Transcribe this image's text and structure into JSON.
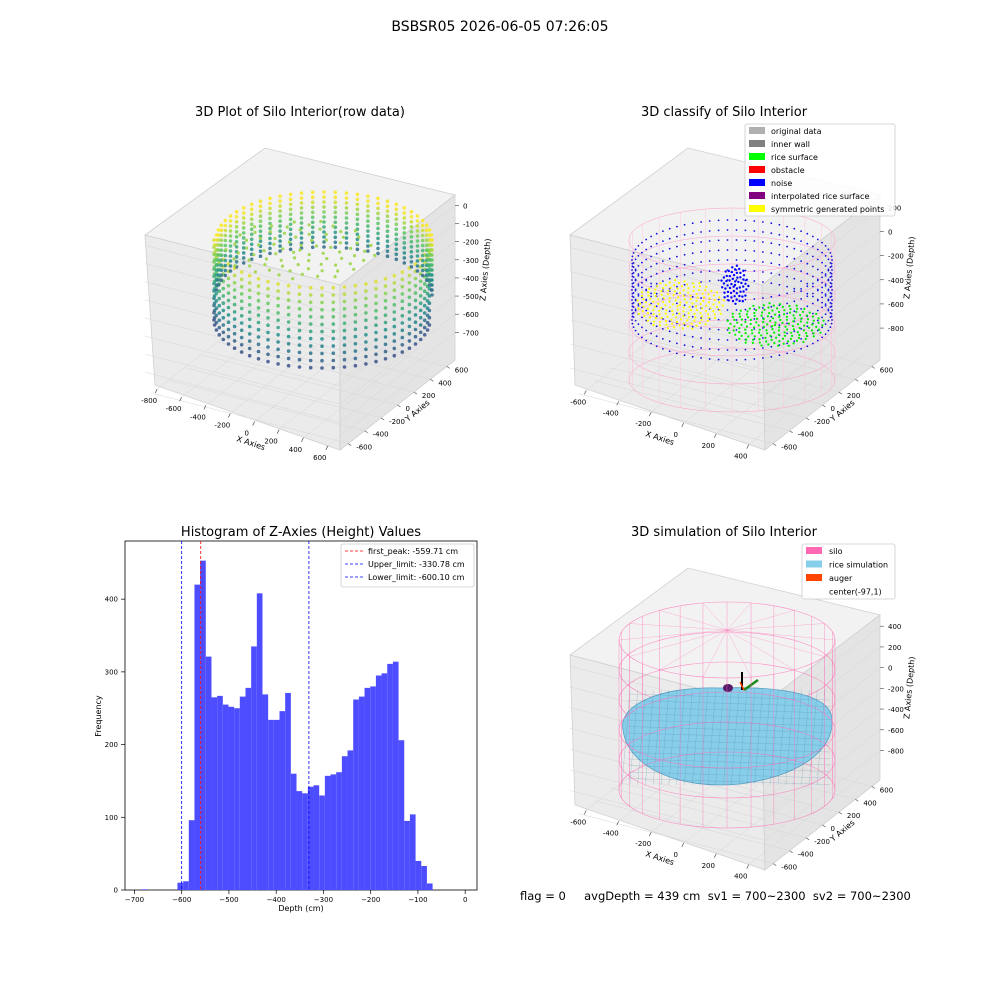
{
  "figure": {
    "suptitle": "BSBSR05 2026-06-05 07:26:05",
    "status_line": "flag = 0     avgDepth = 439 cm  sv1 = 700~2300  sv2 = 700~2300"
  },
  "chart_data": [
    {
      "type": "scatter",
      "projection": "3d",
      "title": "3D Plot of Silo Interior(row data)",
      "xlabel": "X Axies",
      "ylabel": "Y Axies",
      "zlabel": "Z Axies (Depth)",
      "xticks": [
        "-800",
        "-600",
        "-400",
        "-200",
        "0",
        "200",
        "400",
        "600"
      ],
      "yticks": [
        "-600",
        "-400",
        "-200",
        "0",
        "200",
        "400",
        "600"
      ],
      "zticks": [
        "0",
        "-100",
        "-200",
        "-300",
        "-400",
        "-500",
        "-600",
        "-700"
      ],
      "xlim": [
        -900,
        650
      ],
      "ylim": [
        -650,
        650
      ],
      "zlim": [
        -720,
        20
      ],
      "colormap": "viridis",
      "grid": true
    },
    {
      "type": "scatter",
      "projection": "3d",
      "title": "3D classify of Silo Interior",
      "xlabel": "X Axies",
      "ylabel": "Y Axies",
      "zlabel": "Z Axies (Depth)",
      "xticks": [
        "-600",
        "-400",
        "-200",
        "0",
        "200",
        "400"
      ],
      "yticks": [
        "-600",
        "-400",
        "-200",
        "0",
        "200",
        "400",
        "600"
      ],
      "zticks": [
        "200",
        "0",
        "-200",
        "-400",
        "-600",
        "-800"
      ],
      "xlim": [
        -700,
        500
      ],
      "ylim": [
        -650,
        650
      ],
      "zlim": [
        -900,
        300
      ],
      "legend": {
        "position": "top-right",
        "entries": [
          {
            "label": "original data",
            "color": "#b0b0b0"
          },
          {
            "label": "inner wall",
            "color": "#808080"
          },
          {
            "label": "rice surface",
            "color": "#00ff00"
          },
          {
            "label": "obstacle",
            "color": "#ff0000"
          },
          {
            "label": "noise",
            "color": "#0000ff"
          },
          {
            "label": "interpolated rice surface",
            "color": "#800080"
          },
          {
            "label": "symmetric generated points",
            "color": "#ffff00"
          }
        ]
      },
      "grid": true
    },
    {
      "type": "bar",
      "title": "Histogram of Z-Axies (Height) Values",
      "xlabel": "Depth (cm)",
      "ylabel": "Frequency",
      "xlim": [
        -720,
        25
      ],
      "ylim": [
        0,
        480
      ],
      "xticks": [
        -700,
        -600,
        -500,
        -400,
        -300,
        -200,
        -100,
        0
      ],
      "yticks": [
        0,
        100,
        200,
        300,
        400
      ],
      "bar_color": "#4d4dff",
      "bins_left_edge": [
        -685,
        -609,
        -597,
        -585,
        -573,
        -561,
        -549,
        -537,
        -525,
        -513,
        -501,
        -489,
        -477,
        -465,
        -453,
        -441,
        -429,
        -417,
        -405,
        -393,
        -381,
        -369,
        -357,
        -345,
        -333,
        -321,
        -309,
        -297,
        -285,
        -273,
        -261,
        -249,
        -237,
        -225,
        -213,
        -201,
        -189,
        -177,
        -165,
        -153,
        -141,
        -129,
        -117,
        -105,
        -93,
        -81,
        -69,
        -57,
        -45,
        -33,
        -21
      ],
      "bin_width": 12,
      "values": [
        1,
        10,
        12,
        96,
        420,
        453,
        321,
        265,
        267,
        255,
        252,
        250,
        266,
        278,
        335,
        408,
        269,
        234,
        234,
        246,
        271,
        160,
        136,
        133,
        142,
        144,
        130,
        157,
        159,
        162,
        184,
        192,
        262,
        266,
        278,
        280,
        295,
        298,
        311,
        314,
        206,
        95,
        104,
        40,
        33,
        9,
        0,
        0,
        0,
        0,
        0
      ],
      "vlines": [
        {
          "label": "first_peak: -559.71 cm",
          "x": -559.71,
          "color": "#ff0000"
        },
        {
          "label": "Upper_limit: -330.78 cm",
          "x": -330.78,
          "color": "#0000ff"
        },
        {
          "label": "Lower_limit: -600.10 cm",
          "x": -600.1,
          "color": "#0000ff"
        }
      ],
      "legend": {
        "position": "top-right"
      },
      "grid": false
    },
    {
      "type": "surface",
      "projection": "3d",
      "title": "3D simulation of Silo Interior",
      "xlabel": "X Axies",
      "ylabel": "Y Axies",
      "zlabel": "Z Axies (Depth)",
      "xticks": [
        "-600",
        "-400",
        "-200",
        "0",
        "200",
        "400"
      ],
      "yticks": [
        "-600",
        "-400",
        "-200",
        "0",
        "200",
        "400",
        "600"
      ],
      "zticks": [
        "400",
        "200",
        "0",
        "-200",
        "-400",
        "-600",
        "-800"
      ],
      "xlim": [
        -700,
        500
      ],
      "ylim": [
        -650,
        650
      ],
      "zlim": [
        -900,
        450
      ],
      "legend": {
        "position": "top-right",
        "entries": [
          {
            "label": "silo",
            "color": "#ff69b4"
          },
          {
            "label": "rice simulation",
            "color": "#87ceeb"
          },
          {
            "label": "auger",
            "color": "#ff4500"
          },
          {
            "label": "center(-97,1)",
            "color": ""
          }
        ]
      },
      "grid": true
    }
  ]
}
